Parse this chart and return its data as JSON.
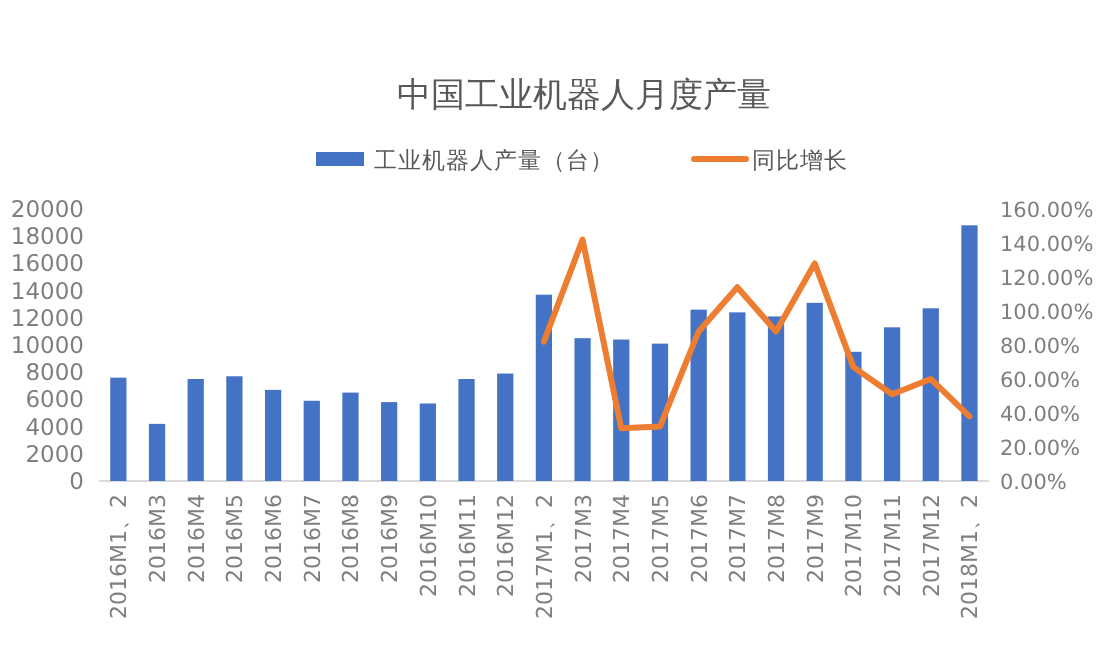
{
  "chart_data": {
    "type": "bar",
    "title": "中国工业机器人月度产量",
    "categories": [
      "2016M1、2",
      "2016M3",
      "2016M4",
      "2016M5",
      "2016M6",
      "2016M7",
      "2016M8",
      "2016M9",
      "2016M10",
      "2016M11",
      "2016M12",
      "2017M1、2",
      "2017M3",
      "2017M4",
      "2017M5",
      "2017M6",
      "2017M7",
      "2017M8",
      "2017M9",
      "2017M10",
      "2017M11",
      "2017M12",
      "2018M1、2"
    ],
    "series": [
      {
        "name": "工业机器人产量（台）",
        "color": "#4472c4",
        "values": [
          7600,
          4200,
          7500,
          7700,
          6700,
          5900,
          6500,
          5800,
          5700,
          7500,
          7900,
          13700,
          10500,
          10400,
          10100,
          12600,
          12400,
          12100,
          13100,
          9500,
          11300,
          12700,
          18800
        ]
      },
      {
        "name": "同比增长",
        "type": "line",
        "axis": "y2",
        "color": "#ed7d31",
        "values": [
          null,
          null,
          null,
          null,
          null,
          null,
          null,
          null,
          null,
          null,
          null,
          82,
          142,
          31,
          32,
          88,
          114,
          88,
          128,
          67,
          51,
          60,
          38
        ]
      }
    ],
    "ylim": [
      0,
      20000
    ],
    "yticks": [
      0,
      2000,
      4000,
      6000,
      8000,
      10000,
      12000,
      14000,
      16000,
      18000,
      20000
    ],
    "y2lim": [
      0,
      160
    ],
    "y2ticks": [
      {
        "value": 0,
        "label": "0.00%"
      },
      {
        "value": 20,
        "label": "20.00%"
      },
      {
        "value": 40,
        "label": "40.00%"
      },
      {
        "value": 60,
        "label": "60.00%"
      },
      {
        "value": 80,
        "label": "80.00%"
      },
      {
        "value": 100,
        "label": "100.00%"
      },
      {
        "value": 120,
        "label": "120.00%"
      },
      {
        "value": 140,
        "label": "140.00%"
      },
      {
        "value": 160,
        "label": "160.00%"
      }
    ],
    "grid": false,
    "legend": "top"
  }
}
